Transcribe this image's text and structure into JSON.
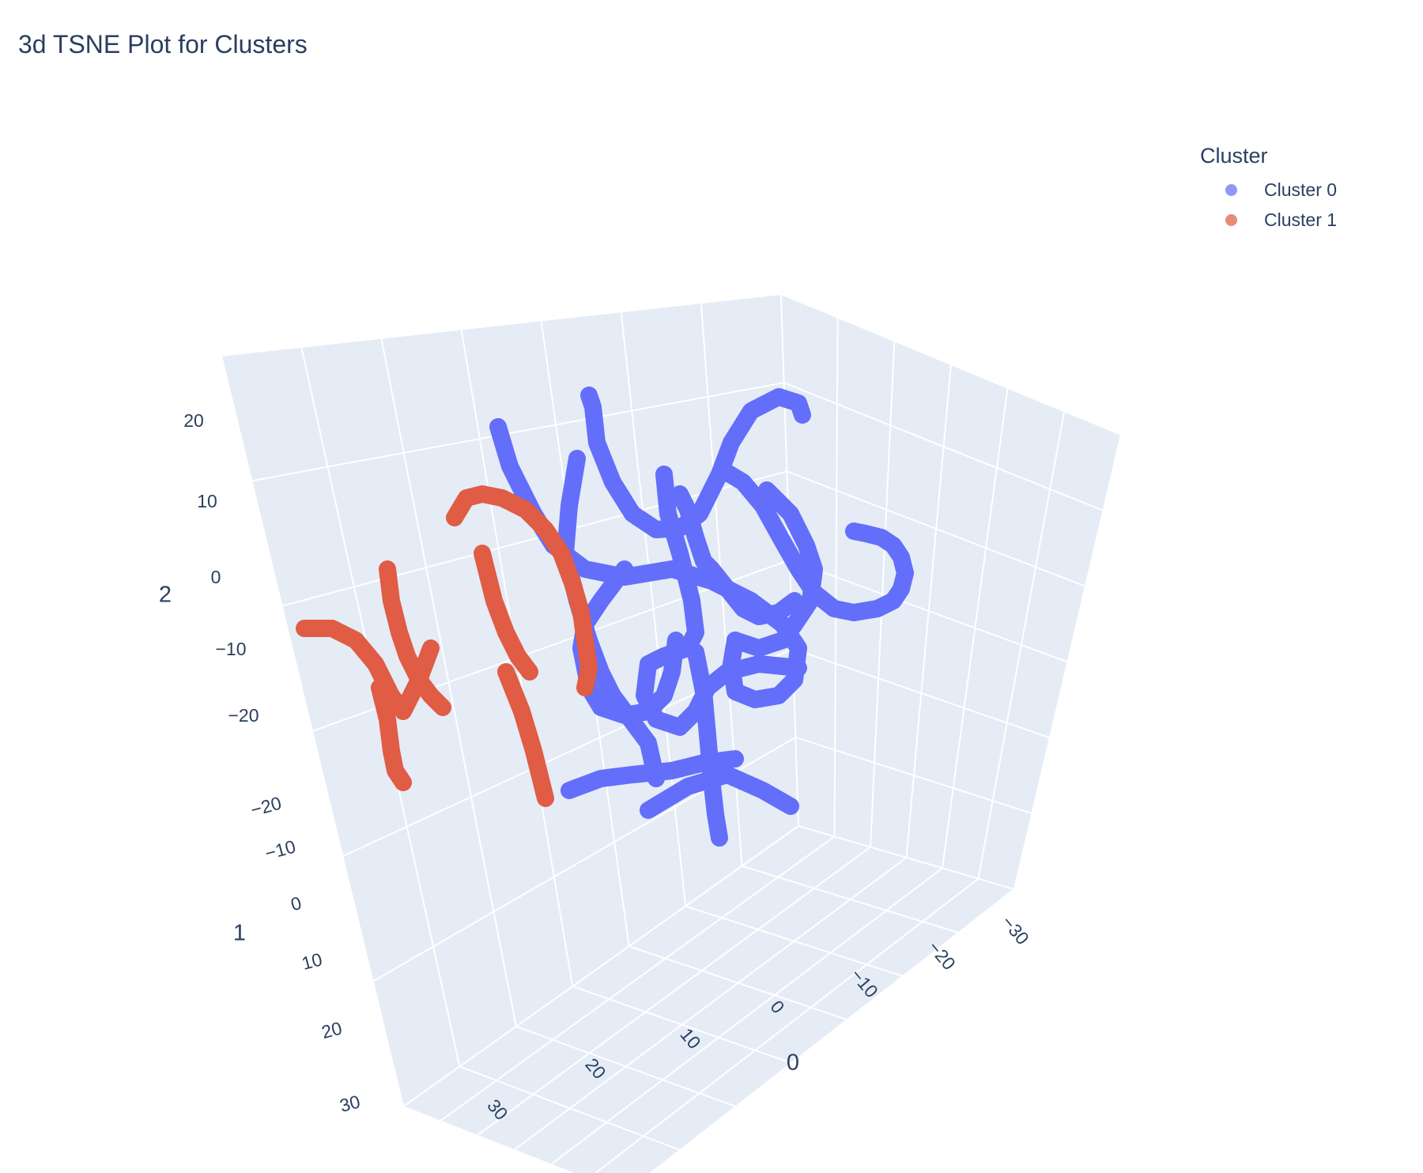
{
  "chart_data": {
    "type": "scatter3d",
    "title": "3d TSNE Plot for Clusters",
    "legend": {
      "title": "Cluster",
      "position": "top-right"
    },
    "axes": {
      "x": {
        "label": "0",
        "ticks": [
          "30",
          "20",
          "10",
          "0",
          "−10",
          "−20",
          "−30"
        ],
        "range": [
          -35,
          35
        ]
      },
      "y": {
        "label": "1",
        "ticks": [
          "−20",
          "−10",
          "0",
          "10",
          "20",
          "30"
        ],
        "range": [
          -25,
          35
        ]
      },
      "z": {
        "label": "2",
        "ticks": [
          "20",
          "10",
          "0",
          "−10",
          "−20"
        ],
        "range": [
          -30,
          30
        ]
      }
    },
    "grid": true,
    "series": [
      {
        "name": "Cluster 0",
        "color": "#636efa",
        "legend_color": "#8f97f8",
        "strands": [
          [
            [
              630,
              540
            ],
            [
              645,
              590
            ],
            [
              675,
              650
            ],
            [
              700,
              690
            ],
            [
              740,
              720
            ],
            [
              790,
              730
            ],
            [
              850,
              720
            ],
            [
              900,
              735
            ],
            [
              950,
              760
            ],
            [
              990,
              790
            ],
            [
              1010,
              820
            ],
            [
              1005,
              860
            ],
            [
              985,
              880
            ],
            [
              955,
              885
            ],
            [
              930,
              875
            ],
            [
              925,
              840
            ],
            [
              930,
              810
            ]
          ],
          [
            [
              745,
              500
            ],
            [
              750,
              515
            ],
            [
              755,
              560
            ],
            [
              775,
              610
            ],
            [
              800,
              650
            ],
            [
              830,
              670
            ],
            [
              860,
              668
            ],
            [
              885,
              650
            ],
            [
              910,
              600
            ],
            [
              925,
              560
            ],
            [
              950,
              520
            ],
            [
              985,
              502
            ],
            [
              1010,
              510
            ],
            [
              1015,
              525
            ]
          ],
          [
            [
              730,
              580
            ],
            [
              720,
              640
            ],
            [
              715,
              700
            ],
            [
              730,
              760
            ],
            [
              745,
              810
            ],
            [
              760,
              850
            ],
            [
              775,
              880
            ],
            [
              790,
              900
            ],
            [
              805,
              920
            ],
            [
              820,
              940
            ],
            [
              830,
              985
            ]
          ],
          [
            [
              840,
              600
            ],
            [
              845,
              650
            ],
            [
              860,
              700
            ],
            [
              875,
              760
            ],
            [
              880,
              800
            ],
            [
              870,
              820
            ],
            [
              840,
              830
            ],
            [
              820,
              840
            ],
            [
              815,
              880
            ],
            [
              830,
              910
            ],
            [
              860,
              920
            ],
            [
              880,
              900
            ],
            [
              895,
              870
            ],
            [
              920,
              850
            ],
            [
              960,
              840
            ],
            [
              1010,
              845
            ]
          ],
          [
            [
              970,
              620
            ],
            [
              1000,
              650
            ],
            [
              1020,
              690
            ],
            [
              1030,
              720
            ],
            [
              1025,
              760
            ],
            [
              1005,
              790
            ],
            [
              990,
              810
            ],
            [
              960,
              820
            ],
            [
              930,
              810
            ]
          ],
          [
            [
              790,
              720
            ],
            [
              760,
              760
            ],
            [
              740,
              790
            ],
            [
              735,
              820
            ],
            [
              745,
              870
            ],
            [
              760,
              895
            ],
            [
              790,
              905
            ],
            [
              820,
              900
            ],
            [
              840,
              880
            ],
            [
              850,
              850
            ],
            [
              855,
              810
            ]
          ],
          [
            [
              720,
              1000
            ],
            [
              760,
              985
            ],
            [
              800,
              980
            ],
            [
              850,
              975
            ],
            [
              890,
              965
            ],
            [
              930,
              960
            ]
          ],
          [
            [
              880,
              825
            ],
            [
              890,
              875
            ],
            [
              895,
              930
            ],
            [
              900,
              985
            ],
            [
              905,
              1030
            ],
            [
              910,
              1060
            ]
          ],
          [
            [
              820,
              1025
            ],
            [
              870,
              995
            ],
            [
              920,
              980
            ],
            [
              965,
              1000
            ],
            [
              1000,
              1020
            ]
          ],
          [
            [
              860,
              625
            ],
            [
              870,
              645
            ],
            [
              880,
              680
            ],
            [
              890,
              710
            ],
            [
              900,
              720
            ],
            [
              920,
              745
            ],
            [
              940,
              770
            ],
            [
              960,
              780
            ],
            [
              985,
              775
            ],
            [
              1005,
              760
            ]
          ],
          [
            [
              915,
              595
            ],
            [
              940,
              610
            ],
            [
              965,
              640
            ],
            [
              990,
              685
            ],
            [
              1010,
              720
            ],
            [
              1030,
              750
            ],
            [
              1055,
              770
            ],
            [
              1080,
              775
            ],
            [
              1110,
              770
            ],
            [
              1130,
              760
            ],
            [
              1140,
              745
            ],
            [
              1145,
              725
            ],
            [
              1140,
              705
            ],
            [
              1130,
              690
            ],
            [
              1115,
              680
            ],
            [
              1095,
              675
            ],
            [
              1080,
              672
            ]
          ]
        ]
      },
      {
        "name": "Cluster 1",
        "color": "#e05c45",
        "legend_color": "#e78c77",
        "strands": [
          [
            [
              385,
              795
            ],
            [
              420,
              795
            ],
            [
              450,
              810
            ],
            [
              475,
              840
            ],
            [
              495,
              880
            ],
            [
              510,
              900
            ],
            [
              530,
              860
            ],
            [
              545,
              820
            ]
          ],
          [
            [
              490,
              720
            ],
            [
              495,
              760
            ],
            [
              505,
              800
            ],
            [
              515,
              830
            ],
            [
              530,
              860
            ],
            [
              545,
              880
            ],
            [
              560,
              895
            ]
          ],
          [
            [
              480,
              870
            ],
            [
              490,
              910
            ],
            [
              495,
              950
            ],
            [
              500,
              975
            ],
            [
              510,
              990
            ]
          ],
          [
            [
              575,
              655
            ],
            [
              590,
              630
            ],
            [
              610,
              625
            ],
            [
              635,
              630
            ],
            [
              665,
              645
            ],
            [
              690,
              670
            ],
            [
              710,
              700
            ],
            [
              725,
              740
            ],
            [
              735,
              775
            ],
            [
              740,
              810
            ],
            [
              745,
              845
            ],
            [
              740,
              870
            ]
          ],
          [
            [
              610,
              700
            ],
            [
              625,
              760
            ],
            [
              640,
              800
            ],
            [
              655,
              830
            ],
            [
              670,
              850
            ]
          ],
          [
            [
              640,
              850
            ],
            [
              660,
              900
            ],
            [
              675,
              950
            ],
            [
              685,
              990
            ],
            [
              690,
              1010
            ]
          ]
        ]
      }
    ]
  }
}
